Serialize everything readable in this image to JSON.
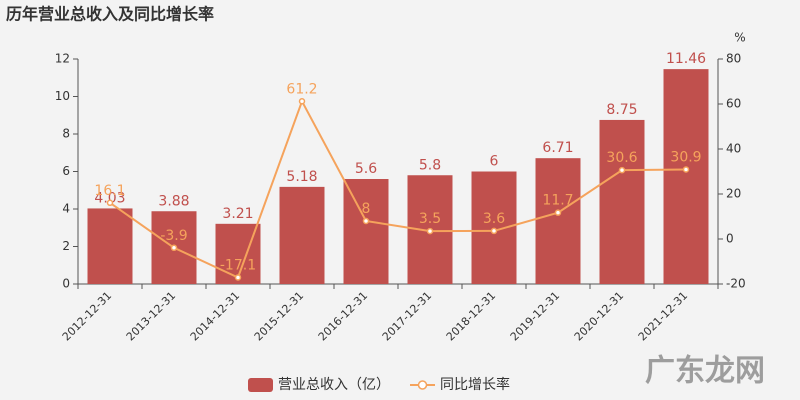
{
  "chart_data": {
    "type": "bar",
    "title": "历年营业总收入及同比增长率",
    "y2_label": "%",
    "categories": [
      "2012-12-31",
      "2013-12-31",
      "2014-12-31",
      "2015-12-31",
      "2016-12-31",
      "2017-12-31",
      "2018-12-31",
      "2019-12-31",
      "2020-12-31",
      "2021-12-31"
    ],
    "series": [
      {
        "name": "营业总收入（亿）",
        "type": "bar",
        "color": "#c0504d",
        "values": [
          4.03,
          3.88,
          3.21,
          5.18,
          5.6,
          5.8,
          6,
          6.71,
          8.75,
          11.46
        ]
      },
      {
        "name": "同比增长率",
        "type": "line",
        "axis": "y2",
        "color": "#f5a35c",
        "values": [
          16.1,
          -3.9,
          -17.1,
          61.2,
          8,
          3.5,
          3.6,
          11.7,
          30.6,
          30.9
        ]
      }
    ],
    "ylim": [
      0,
      12
    ],
    "yticks": [
      0,
      2,
      4,
      6,
      8,
      10,
      12
    ],
    "y2lim": [
      -20,
      80
    ],
    "y2ticks": [
      -20,
      0,
      20,
      40,
      60,
      80
    ],
    "grid": false,
    "legend": "bottom"
  },
  "watermark": "广东龙网"
}
